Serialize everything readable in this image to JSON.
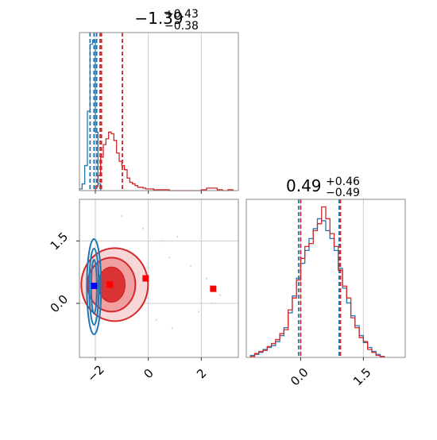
{
  "chart_data": [
    {
      "type": "histogram",
      "panel": "top-left",
      "title": {
        "value": "−1.39",
        "upper": "+0.43",
        "lower": "−0.38"
      },
      "xlim": [
        -2.6,
        3.4
      ],
      "grid": true,
      "series": [
        {
          "name": "",
          "color": "#1f77b4",
          "style": "step",
          "bin_edges": [
            -2.6,
            -2.5,
            -2.4,
            -2.3,
            -2.2,
            -2.1,
            -2.0,
            -1.9,
            -1.8
          ],
          "counts": [
            2,
            8,
            30,
            95,
            175,
            180,
            70,
            8
          ],
          "vlines": [
            -2.2,
            -2.05,
            -1.95
          ]
        },
        {
          "name": "",
          "color": "#d62728",
          "style": "step",
          "bin_edges": [
            -2.0,
            -1.9,
            -1.8,
            -1.7,
            -1.6,
            -1.5,
            -1.4,
            -1.3,
            -1.2,
            -1.1,
            -1.0,
            -0.9,
            -0.8,
            -0.7,
            -0.6,
            -0.5,
            -0.4,
            -0.3,
            -0.2,
            -0.1,
            0.0,
            0.2,
            0.4,
            0.6,
            0.8,
            1.0,
            1.2,
            1.5,
            1.8,
            2.0,
            2.2,
            2.4,
            2.6,
            2.8,
            3.0,
            3.2
          ],
          "counts": [
            5,
            18,
            40,
            55,
            62,
            70,
            68,
            60,
            45,
            35,
            30,
            25,
            15,
            10,
            8,
            6,
            4,
            4,
            3,
            2,
            2,
            1,
            1,
            1,
            0,
            0,
            0,
            0,
            0,
            1,
            3,
            3,
            1,
            0,
            1
          ],
          "vlines": [
            -1.82,
            -1.77,
            -0.98
          ]
        }
      ]
    },
    {
      "type": "contour",
      "panel": "bottom-left",
      "xlim": [
        -2.6,
        3.4
      ],
      "ylim": [
        -1.3,
        2.5
      ],
      "xticks": [
        "−2",
        "0",
        "2"
      ],
      "xtick_values": [
        -2,
        0,
        2
      ],
      "yticks": [
        "0.0",
        "1.5"
      ],
      "ytick_values": [
        0.0,
        1.5
      ],
      "grid": true,
      "series": [
        {
          "name": "",
          "color": "#1f77b4",
          "center": [
            -2.05,
            0.4
          ],
          "spread": [
            0.13,
            1.05
          ]
        },
        {
          "name": "",
          "color": "#d62728",
          "center": [
            -1.45,
            0.45
          ],
          "spread": [
            1.0,
            1.0
          ]
        }
      ],
      "markers": [
        {
          "color": "#0000ff",
          "x": -2.05,
          "y": 0.42
        },
        {
          "color": "#ff0000",
          "x": -1.45,
          "y": 0.45
        },
        {
          "color": "#ff0000",
          "x": -0.1,
          "y": 0.6
        },
        {
          "color": "#ff0000",
          "x": 2.45,
          "y": 0.35
        }
      ]
    },
    {
      "type": "histogram",
      "panel": "bottom-right",
      "title": {
        "value": "0.49",
        "upper": "+0.46",
        "lower": "−0.49"
      },
      "xlim": [
        -1.3,
        2.5
      ],
      "xticks": [
        "0.0",
        "1.5"
      ],
      "xtick_values": [
        0.0,
        1.5
      ],
      "grid": true,
      "series": [
        {
          "name": "",
          "color": "#1f77b4",
          "style": "step",
          "bin_edges": [
            -1.2,
            -1.1,
            -1.0,
            -0.9,
            -0.8,
            -0.7,
            -0.6,
            -0.5,
            -0.4,
            -0.3,
            -0.2,
            -0.1,
            0.0,
            0.1,
            0.2,
            0.3,
            0.4,
            0.5,
            0.6,
            0.7,
            0.8,
            0.9,
            1.0,
            1.1,
            1.2,
            1.3,
            1.4,
            1.5,
            1.6,
            1.7,
            1.8,
            1.9,
            2.0
          ],
          "counts": [
            2,
            3,
            5,
            8,
            10,
            12,
            16,
            22,
            30,
            45,
            62,
            80,
            95,
            108,
            120,
            130,
            140,
            138,
            128,
            120,
            108,
            90,
            70,
            55,
            42,
            32,
            22,
            15,
            10,
            6,
            3,
            1
          ],
          "vlines": [
            -0.05,
            0.92
          ]
        },
        {
          "name": "",
          "color": "#d62728",
          "style": "step",
          "bin_edges": [
            -1.2,
            -1.1,
            -1.0,
            -0.9,
            -0.8,
            -0.7,
            -0.6,
            -0.5,
            -0.4,
            -0.3,
            -0.2,
            -0.1,
            0.0,
            0.1,
            0.2,
            0.3,
            0.4,
            0.5,
            0.6,
            0.7,
            0.8,
            0.9,
            1.0,
            1.1,
            1.2,
            1.3,
            1.4,
            1.5,
            1.6,
            1.7,
            1.8,
            1.9,
            2.0
          ],
          "counts": [
            1,
            4,
            6,
            7,
            11,
            14,
            18,
            24,
            28,
            48,
            60,
            78,
            100,
            112,
            115,
            128,
            135,
            152,
            140,
            125,
            112,
            88,
            72,
            60,
            40,
            30,
            20,
            16,
            8,
            5,
            2,
            1
          ],
          "vlines": [
            0.0,
            0.95
          ]
        }
      ]
    }
  ]
}
